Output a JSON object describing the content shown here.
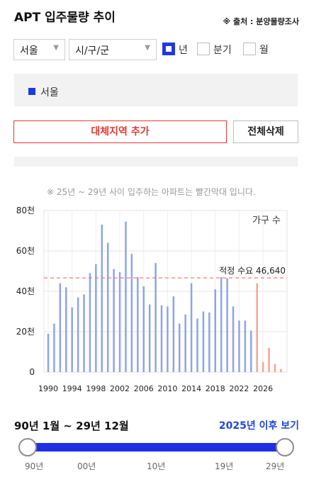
{
  "header": {
    "title": "APT 입주물량 추이",
    "source": "※ 출처 : 분양물량조사"
  },
  "filters": {
    "region_select": "서울",
    "district_select": "시/구/군",
    "periods": [
      {
        "label": "년",
        "checked": true
      },
      {
        "label": "분기",
        "checked": false
      },
      {
        "label": "월",
        "checked": false
      }
    ]
  },
  "regions": {
    "items": [
      "서울"
    ],
    "add_label": "대체지역 추가",
    "delete_label": "전체삭제"
  },
  "note": "※ 25년 ~ 29년 사이 입주하는 아파트는 빨간막대 입니다.",
  "chart_data": {
    "type": "bar",
    "unit": "가구 수",
    "y_ticks": [
      "0",
      "20천",
      "40천",
      "60천",
      "80천"
    ],
    "ylim": [
      0,
      80000
    ],
    "x_ticks": [
      "1990",
      "1994",
      "1998",
      "2002",
      "2006",
      "2010",
      "2014",
      "2018",
      "2022",
      "2026"
    ],
    "categories": [
      1990,
      1991,
      1992,
      1993,
      1994,
      1995,
      1996,
      1997,
      1998,
      1999,
      2000,
      2001,
      2002,
      2003,
      2004,
      2005,
      2006,
      2007,
      2008,
      2009,
      2010,
      2011,
      2012,
      2013,
      2014,
      2015,
      2016,
      2017,
      2018,
      2019,
      2020,
      2021,
      2022,
      2023,
      2024,
      2025,
      2026,
      2027,
      2028,
      2029
    ],
    "values": [
      19000,
      24000,
      44000,
      42000,
      32000,
      37000,
      38500,
      49000,
      53500,
      73000,
      64000,
      51000,
      49500,
      74500,
      58500,
      47000,
      42500,
      33500,
      54000,
      33000,
      32500,
      37500,
      24000,
      28500,
      44000,
      26500,
      30000,
      29500,
      41000,
      47000,
      46500,
      32500,
      25500,
      25500,
      20500,
      44000,
      5000,
      12000,
      4000,
      1500
    ],
    "highlight_from": 2025,
    "colors": {
      "normal": "#8fa3ec",
      "highlight": "#f4a593",
      "demand_line": "#ef6b6b"
    },
    "demand": {
      "label": "적정 수요 46,640",
      "value": 46640
    },
    "grid": true
  },
  "range": {
    "label": "90년 1월 ~ 29년 12월",
    "after_link": "2025년 이후 보기",
    "ticks": [
      "90년",
      "00년",
      "10년",
      "19년",
      "29년"
    ]
  }
}
